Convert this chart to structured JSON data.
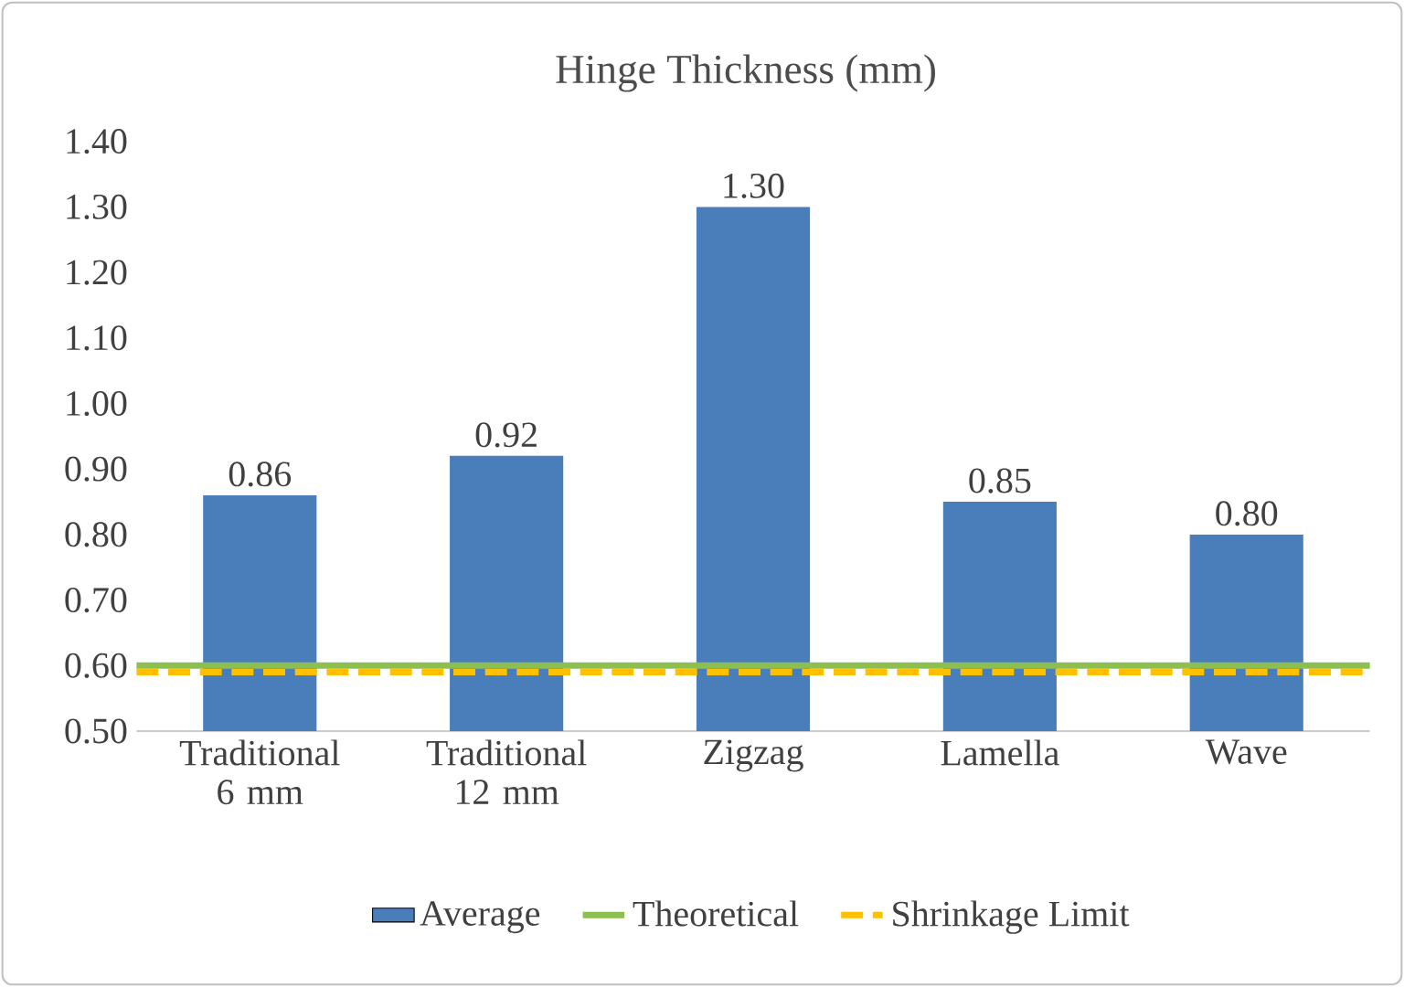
{
  "chart_data": {
    "type": "bar",
    "title": "Hinge Thickness (mm)",
    "categories": [
      "Traditional 6 mm",
      "Traditional 12 mm",
      "Zigzag",
      "Lamella",
      "Wave"
    ],
    "series": [
      {
        "name": "Average",
        "color": "#4a7ebb",
        "values": [
          0.86,
          0.92,
          1.3,
          0.85,
          0.8
        ],
        "value_labels": [
          "0.86",
          "0.92",
          "1.30",
          "0.85",
          "0.80"
        ]
      }
    ],
    "ref_lines": [
      {
        "axis": "y",
        "value": 0.6,
        "label": "Theoretical",
        "color": "#8cbf50",
        "line_style": "solid"
      },
      {
        "axis": "y",
        "value": 0.59,
        "label": "Shrinkage Limit",
        "color": "#ffc000",
        "line_style": "dashed"
      }
    ],
    "ylim": [
      0.5,
      1.4
    ],
    "yticks": [
      {
        "value": 0.5,
        "label": "0.50"
      },
      {
        "value": 0.6,
        "label": "0.60"
      },
      {
        "value": 0.7,
        "label": "0.70"
      },
      {
        "value": 0.8,
        "label": "0.80"
      },
      {
        "value": 0.9,
        "label": "0.90"
      },
      {
        "value": 1.0,
        "label": "1.00"
      },
      {
        "value": 1.1,
        "label": "1.10"
      },
      {
        "value": 1.2,
        "label": "1.20"
      },
      {
        "value": 1.3,
        "label": "1.30"
      },
      {
        "value": 1.4,
        "label": "1.40"
      }
    ],
    "legend": "bottom"
  }
}
